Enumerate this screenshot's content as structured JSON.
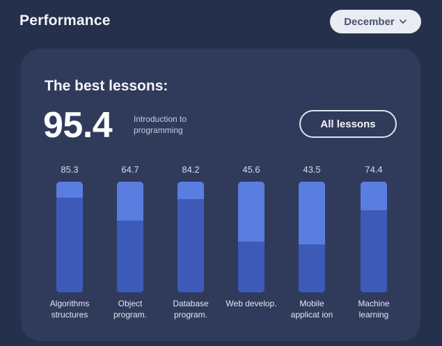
{
  "header": {
    "title": "Performance"
  },
  "month_select": {
    "value": "December"
  },
  "card": {
    "title": "The best lessons:",
    "score": "95.4",
    "score_desc": "Introduction to programming",
    "all_button": "All lessons"
  },
  "colors": {
    "background": "#25304c",
    "card": "#303b5b",
    "bar_top": "#5a7de0",
    "bar_base": "#3e5ab8"
  },
  "chart_data": {
    "type": "bar",
    "categories": [
      "Algorithms structures",
      "Object program.",
      "Database program.",
      "Web develop.",
      "Mobile applicat ion",
      "Machine learning"
    ],
    "value_labels": [
      "85.3",
      "64.7",
      "84.2",
      "45.6",
      "43.5",
      "74.4"
    ],
    "values": [
      85.3,
      64.7,
      84.2,
      45.6,
      43.5,
      74.4
    ],
    "ylim": [
      0,
      100
    ]
  }
}
